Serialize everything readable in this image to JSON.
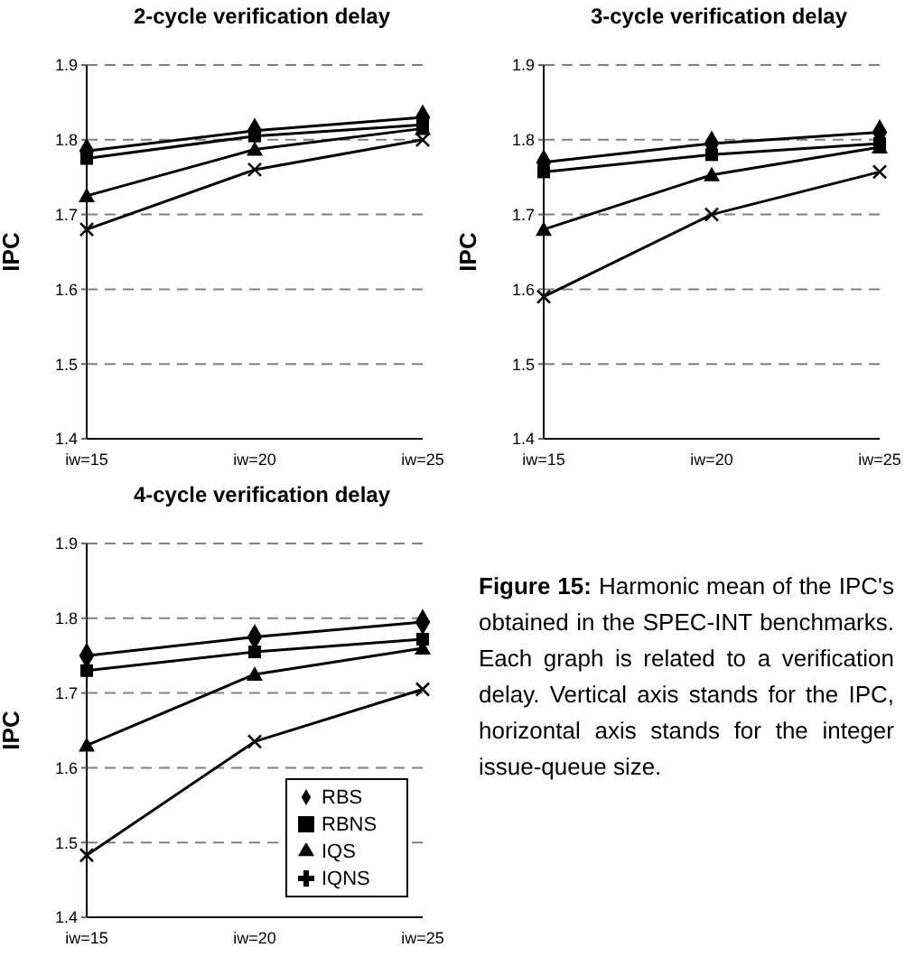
{
  "chart_data": [
    {
      "type": "line",
      "title": "2-cycle verification delay",
      "ylabel": "IPC",
      "categories": [
        "iw=15",
        "iw=20",
        "iw=25"
      ],
      "ylim": [
        1.4,
        1.9
      ],
      "yticks": [
        1.4,
        1.5,
        1.6,
        1.7,
        1.8,
        1.9
      ],
      "grid": "y",
      "legend": false,
      "line_style": "solid",
      "series": [
        {
          "color": "#000000",
          "marker": "diamond",
          "values": [
            1.785,
            1.812,
            1.83
          ]
        },
        {
          "color": "#000000",
          "marker": "square",
          "values": [
            1.775,
            1.805,
            1.82
          ]
        },
        {
          "color": "#000000",
          "marker": "triangle",
          "values": [
            1.725,
            1.787,
            1.815
          ]
        },
        {
          "color": "#000000",
          "marker": "cross",
          "values": [
            1.68,
            1.76,
            1.8
          ]
        }
      ]
    },
    {
      "type": "line",
      "title": "3-cycle verification delay",
      "ylabel": "IPC",
      "categories": [
        "iw=15",
        "iw=20",
        "iw=25"
      ],
      "ylim": [
        1.4,
        1.9
      ],
      "yticks": [
        1.4,
        1.5,
        1.6,
        1.7,
        1.8,
        1.9
      ],
      "grid": "y",
      "legend": false,
      "line_style": "solid",
      "series": [
        {
          "color": "#000000",
          "marker": "diamond",
          "values": [
            1.77,
            1.795,
            1.81
          ]
        },
        {
          "color": "#000000",
          "marker": "square",
          "values": [
            1.757,
            1.78,
            1.795
          ]
        },
        {
          "color": "#000000",
          "marker": "triangle",
          "values": [
            1.68,
            1.753,
            1.79
          ]
        },
        {
          "color": "#000000",
          "marker": "cross",
          "values": [
            1.59,
            1.7,
            1.757
          ]
        }
      ]
    },
    {
      "type": "line",
      "title": "4-cycle verification delay",
      "ylabel": "IPC",
      "categories": [
        "iw=15",
        "iw=20",
        "iw=25"
      ],
      "ylim": [
        1.4,
        1.9
      ],
      "yticks": [
        1.4,
        1.5,
        1.6,
        1.7,
        1.8,
        1.9
      ],
      "grid": "y",
      "legend": "bottom right",
      "line_style": "solid",
      "series": [
        {
          "name": "RBS",
          "color": "#000000",
          "marker": "diamond",
          "values": [
            1.75,
            1.775,
            1.795
          ]
        },
        {
          "name": "RBNS",
          "color": "#000000",
          "marker": "square",
          "values": [
            1.73,
            1.755,
            1.772
          ]
        },
        {
          "name": "IQS",
          "color": "#000000",
          "marker": "triangle",
          "values": [
            1.63,
            1.725,
            1.76
          ]
        },
        {
          "name": "IQNS",
          "color": "#000000",
          "marker": "cross",
          "values": [
            1.483,
            1.635,
            1.705
          ]
        }
      ]
    },
    {
      "type": "other",
      "title": "Figure 15:",
      "annotations": [
        "Harmonic mean of the IPC's obtained in the SPEC-INT benchmarks. Each graph is related to a verification delay. Vertical axis stands for the IPC, horizontal axis stands for the integer issue-queue size."
      ]
    }
  ]
}
